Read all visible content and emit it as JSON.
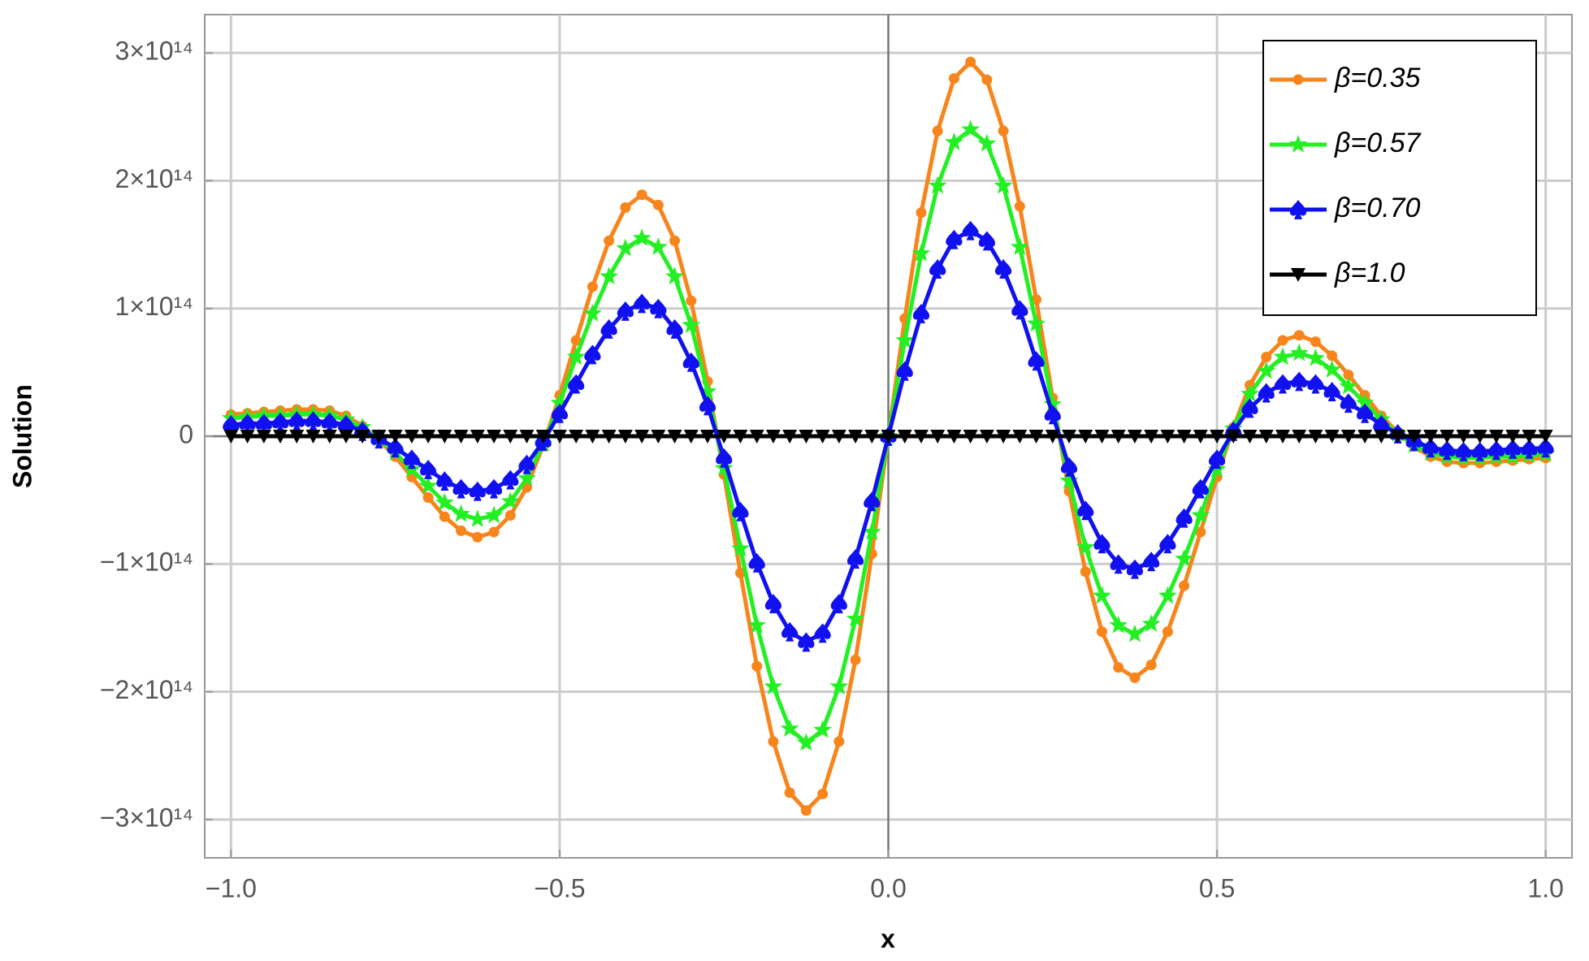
{
  "chart_data": {
    "type": "line",
    "x_label": "x",
    "y_label": "Solution",
    "x": [
      -1,
      -0.975,
      -0.95,
      -0.925,
      -0.9,
      -0.875,
      -0.85,
      -0.825,
      -0.8,
      -0.775,
      -0.75,
      -0.725,
      -0.7,
      -0.675,
      -0.65,
      -0.625,
      -0.6,
      -0.575,
      -0.55,
      -0.525,
      -0.5,
      -0.475,
      -0.45,
      -0.425,
      -0.4,
      -0.375,
      -0.35,
      -0.325,
      -0.3,
      -0.275,
      -0.25,
      -0.225,
      -0.2,
      -0.175,
      -0.15,
      -0.125,
      -0.1,
      -0.075,
      -0.05,
      -0.025,
      0,
      0.025,
      0.05,
      0.075,
      0.1,
      0.125,
      0.15,
      0.175,
      0.2,
      0.225,
      0.25,
      0.275,
      0.3,
      0.325,
      0.35,
      0.375,
      0.4,
      0.425,
      0.45,
      0.475,
      0.5,
      0.525,
      0.55,
      0.575,
      0.6,
      0.625,
      0.65,
      0.675,
      0.7,
      0.725,
      0.75,
      0.775,
      0.8,
      0.825,
      0.85,
      0.875,
      0.9,
      0.925,
      0.95,
      0.975,
      1
    ],
    "series": [
      {
        "name": "β=0.35",
        "color": "#f7851b",
        "marker": "circle",
        "values": [
          17000000000000.0,
          18000000000000.0,
          19000000000000.0,
          20000000000000.0,
          21000000000000.0,
          21000000000000.0,
          20000000000000.0,
          16000000000000.0,
          8000000000000.0,
          -3000000000000.0,
          -16000000000000.0,
          -32000000000000.0,
          -48000000000000.0,
          -63000000000000.0,
          -74000000000000.0,
          -79000000000000.0,
          -75000000000000.0,
          -62000000000000.0,
          -40000000000000.0,
          -7000000000000.0,
          32000000000000.0,
          75000000000000.0,
          117000000000000.0,
          153000000000000.0,
          179000000000000.0,
          189000000000000.0,
          181000000000000.0,
          153000000000000.0,
          106000000000000.0,
          43000000000000.0,
          -30000000000000.0,
          -107000000000000.0,
          -180000000000000.0,
          -239000000000000.0,
          -279000000000000.0,
          -293000000000000.0,
          -280000000000000.0,
          -239000000000000.0,
          -175000000000000.0,
          -92000000000000.0,
          0,
          92000000000000.0,
          175000000000000.0,
          239000000000000.0,
          280000000000000.0,
          293000000000000.0,
          279000000000000.0,
          239000000000000.0,
          180000000000000.0,
          107000000000000.0,
          30000000000000.0,
          -43000000000000.0,
          -106000000000000.0,
          -153000000000000.0,
          -181000000000000.0,
          -189000000000000.0,
          -179000000000000.0,
          -153000000000000.0,
          -117000000000000.0,
          -75000000000000.0,
          -32000000000000.0,
          7000000000000.0,
          40000000000000.0,
          62000000000000.0,
          75000000000000.0,
          79000000000000.0,
          74000000000000.0,
          63000000000000.0,
          48000000000000.0,
          32000000000000.0,
          16000000000000.0,
          3000000000000.0,
          -8000000000000.0,
          -16000000000000.0,
          -20000000000000.0,
          -21000000000000.0,
          -21000000000000.0,
          -20000000000000.0,
          -19000000000000.0,
          -18000000000000.0,
          -17000000000000.0
        ]
      },
      {
        "name": "β=0.57",
        "color": "#22f022",
        "marker": "star",
        "values": [
          14000000000000.0,
          15000000000000.0,
          16000000000000.0,
          16000000000000.0,
          17000000000000.0,
          17000000000000.0,
          16000000000000.0,
          13000000000000.0,
          7000000000000.0,
          -2000000000000.0,
          -13000000000000.0,
          -26000000000000.0,
          -39000000000000.0,
          -52000000000000.0,
          -61000000000000.0,
          -65000000000000.0,
          -62000000000000.0,
          -51000000000000.0,
          -33000000000000.0,
          -6000000000000.0,
          26000000000000.0,
          62000000000000.0,
          96000000000000.0,
          125000000000000.0,
          147000000000000.0,
          155000000000000.0,
          148000000000000.0,
          125000000000000.0,
          87000000000000.0,
          35000000000000.0,
          -25000000000000.0,
          -88000000000000.0,
          -148000000000000.0,
          -196000000000000.0,
          -229000000000000.0,
          -240000000000000.0,
          -230000000000000.0,
          -196000000000000.0,
          -143000000000000.0,
          -75000000000000.0,
          0,
          75000000000000.0,
          143000000000000.0,
          196000000000000.0,
          230000000000000.0,
          240000000000000.0,
          229000000000000.0,
          196000000000000.0,
          148000000000000.0,
          88000000000000.0,
          25000000000000.0,
          -35000000000000.0,
          -87000000000000.0,
          -125000000000000.0,
          -148000000000000.0,
          -155000000000000.0,
          -147000000000000.0,
          -125000000000000.0,
          -96000000000000.0,
          -62000000000000.0,
          -26000000000000.0,
          6000000000000.0,
          33000000000000.0,
          51000000000000.0,
          62000000000000.0,
          65000000000000.0,
          61000000000000.0,
          52000000000000.0,
          39000000000000.0,
          26000000000000.0,
          13000000000000.0,
          2000000000000.0,
          -7000000000000.0,
          -13000000000000.0,
          -16000000000000.0,
          -17000000000000.0,
          -17000000000000.0,
          -16000000000000.0,
          -16000000000000.0,
          -15000000000000.0,
          -14000000000000.0
        ]
      },
      {
        "name": "β=0.70",
        "color": "#1010f0",
        "marker": "spade",
        "values": [
          9000000000000.0,
          10000000000000.0,
          10000000000000.0,
          11000000000000.0,
          12000000000000.0,
          12000000000000.0,
          11000000000000.0,
          9000000000000.0,
          4000000000000.0,
          -2000000000000.0,
          -9000000000000.0,
          -18000000000000.0,
          -26000000000000.0,
          -35000000000000.0,
          -41000000000000.0,
          -43000000000000.0,
          -41000000000000.0,
          -34000000000000.0,
          -22000000000000.0,
          -4000000000000.0,
          18000000000000.0,
          41000000000000.0,
          64000000000000.0,
          84000000000000.0,
          98000000000000.0,
          104000000000000.0,
          100000000000000.0,
          84000000000000.0,
          58000000000000.0,
          24000000000000.0,
          -17000000000000.0,
          -59000000000000.0,
          -99000000000000.0,
          -131000000000000.0,
          -153000000000000.0,
          -161000000000000.0,
          -154000000000000.0,
          -131000000000000.0,
          -96000000000000.0,
          -51000000000000.0,
          0,
          51000000000000.0,
          96000000000000.0,
          131000000000000.0,
          154000000000000.0,
          161000000000000.0,
          153000000000000.0,
          131000000000000.0,
          99000000000000.0,
          59000000000000.0,
          17000000000000.0,
          -24000000000000.0,
          -58000000000000.0,
          -84000000000000.0,
          -100000000000000.0,
          -104000000000000.0,
          -98000000000000.0,
          -84000000000000.0,
          -64000000000000.0,
          -41000000000000.0,
          -18000000000000.0,
          4000000000000.0,
          22000000000000.0,
          34000000000000.0,
          41000000000000.0,
          43000000000000.0,
          41000000000000.0,
          35000000000000.0,
          26000000000000.0,
          18000000000000.0,
          9000000000000.0,
          2000000000000.0,
          -4000000000000.0,
          -9000000000000.0,
          -11000000000000.0,
          -12000000000000.0,
          -12000000000000.0,
          -11000000000000.0,
          -10000000000000.0,
          -10000000000000.0,
          -9000000000000.0
        ]
      },
      {
        "name": "β=1.0",
        "color": "#000000",
        "marker": "triangle-down",
        "values": [
          0,
          0,
          0,
          0,
          0,
          0,
          0,
          0,
          0,
          0,
          0,
          0,
          0,
          0,
          0,
          0,
          0,
          0,
          0,
          0,
          0,
          0,
          0,
          0,
          0,
          0,
          0,
          0,
          0,
          0,
          0,
          0,
          0,
          0,
          0,
          0,
          0,
          0,
          0,
          0,
          0,
          0,
          0,
          0,
          0,
          0,
          0,
          0,
          0,
          0,
          0,
          0,
          0,
          0,
          0,
          0,
          0,
          0,
          0,
          0,
          0,
          0,
          0,
          0,
          0,
          0,
          0,
          0,
          0,
          0,
          0,
          0,
          0,
          0,
          0,
          0,
          0,
          0,
          0,
          0,
          0
        ]
      }
    ],
    "xlim": [
      -1.04,
      1.04
    ],
    "ylim": [
      -330000000000000.0,
      330000000000000.0
    ],
    "xticks": [
      {
        "value": -1,
        "label": "−1.0"
      },
      {
        "value": -0.5,
        "label": "−0.5"
      },
      {
        "value": 0,
        "label": "0.0"
      },
      0.5,
      {
        "value": 1,
        "label": "1.0"
      }
    ],
    "yticks": [
      {
        "value": -300000000000000.0,
        "label": "−3×10¹⁴"
      },
      {
        "value": -200000000000000.0,
        "label": "−2×10¹⁴"
      },
      {
        "value": -100000000000000.0,
        "label": "−1×10¹⁴"
      },
      0,
      {
        "value": 100000000000000.0,
        "label": "1×10¹⁴"
      },
      {
        "value": 200000000000000.0,
        "label": "2×10¹⁴"
      },
      {
        "value": 300000000000000.0,
        "label": "3×10¹⁴"
      }
    ],
    "grid": true,
    "legend": "top right"
  }
}
